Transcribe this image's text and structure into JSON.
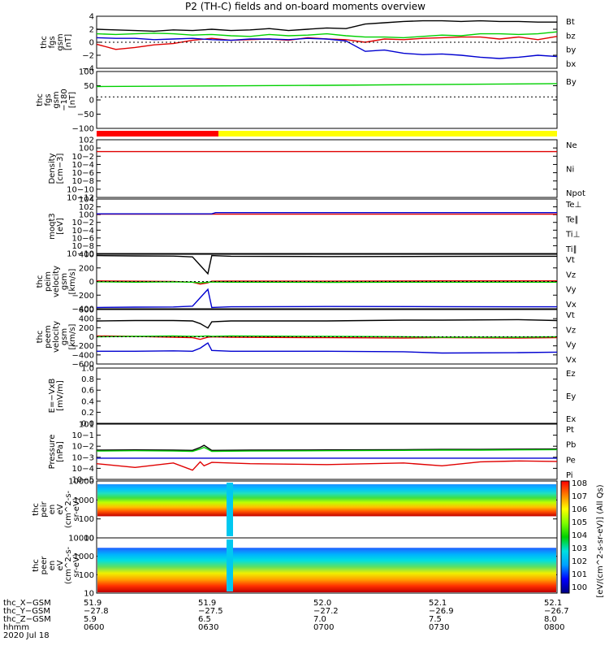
{
  "title": "P2 (TH-C) fields and on-board moments overview",
  "colors": {
    "black": "#000000",
    "red": "#e00000",
    "green": "#00d000",
    "blue": "#0000d0"
  },
  "chart_data": [
    {
      "type": "line",
      "ylabel": [
        "thc",
        "fgs",
        "gsm",
        "[nT]"
      ],
      "ylim": [
        -4,
        4
      ],
      "yticks": [
        "4",
        "2",
        "0",
        "−2",
        "−4"
      ],
      "x": [
        0,
        5,
        10,
        15,
        20,
        25,
        30,
        35,
        40,
        45,
        50,
        55,
        60,
        65,
        70,
        75,
        80,
        85,
        90,
        95,
        100,
        105,
        110,
        115,
        120
      ],
      "series": [
        {
          "name": "Bt",
          "color": "black",
          "values": [
            2.0,
            1.9,
            1.8,
            1.7,
            1.9,
            1.8,
            2.0,
            1.8,
            1.9,
            2.1,
            1.8,
            2.0,
            2.2,
            2.1,
            2.8,
            3.0,
            3.2,
            3.3,
            3.3,
            3.2,
            3.3,
            3.2,
            3.2,
            3.1,
            3.1
          ]
        },
        {
          "name": "bz",
          "color": "red",
          "values": [
            -0.3,
            -1.1,
            -0.8,
            -0.4,
            -0.2,
            0.3,
            0.6,
            0.3,
            0.4,
            0.5,
            0.3,
            0.7,
            0.5,
            0.4,
            0.0,
            0.5,
            0.4,
            0.6,
            0.7,
            0.8,
            0.8,
            0.5,
            0.8,
            0.4,
            0.9
          ]
        },
        {
          "name": "by",
          "color": "green",
          "values": [
            1.3,
            1.2,
            1.3,
            1.4,
            1.3,
            1.1,
            1.2,
            1.0,
            0.9,
            1.2,
            1.0,
            1.1,
            1.3,
            1.0,
            0.8,
            0.8,
            0.7,
            0.9,
            1.1,
            1.0,
            1.3,
            1.3,
            1.2,
            1.3,
            1.6
          ]
        },
        {
          "name": "bx",
          "color": "blue",
          "values": [
            0.7,
            0.6,
            0.6,
            0.4,
            0.5,
            0.6,
            0.4,
            0.3,
            0.5,
            0.5,
            0.4,
            0.6,
            0.5,
            0.2,
            -1.4,
            -1.2,
            -1.7,
            -1.9,
            -1.8,
            -2.0,
            -2.3,
            -2.5,
            -2.3,
            -2.0,
            -2.2
          ]
        }
      ]
    },
    {
      "type": "line",
      "ylabel": [
        "thc",
        "fgs",
        "gsm",
        "−180",
        "[nT]"
      ],
      "ylim": [
        -130,
        105
      ],
      "yticks": [
        "100",
        "50",
        "0",
        "−50",
        "−100"
      ],
      "x": [
        0,
        60,
        120
      ],
      "series": [
        {
          "name": "By",
          "color": "green",
          "values": [
            43,
            48,
            55
          ]
        }
      ]
    },
    {
      "type": "line",
      "ylabel": [
        "Density",
        "[cm−3]"
      ],
      "log": true,
      "ylim": [
        -13,
        3
      ],
      "yticks": [
        "10^2",
        "10^0",
        "10^−2",
        "10^−4",
        "10^−6",
        "10^−8",
        "10^−10",
        "10^−12"
      ],
      "x": [
        0,
        120
      ],
      "series": [
        {
          "name": "Ne",
          "color": "red",
          "values": [
            0.5,
            0.5
          ]
        },
        {
          "name": "Ni",
          "color": "black",
          "values": [
            null,
            null
          ]
        },
        {
          "name": "Npot",
          "color": "blue",
          "values": [
            null,
            null
          ]
        }
      ]
    },
    {
      "type": "line",
      "ylabel": [
        "moqt3",
        "[eV]"
      ],
      "log": true,
      "ylim": [
        -13,
        5
      ],
      "yticks": [
        "10^4",
        "10^2",
        "10^0",
        "10^−2",
        "10^−4",
        "10^−6",
        "10^−8",
        "10^−10"
      ],
      "x": [
        0,
        30,
        31,
        120
      ],
      "series": [
        {
          "name": "Te⊥",
          "color": "red",
          "values": [
            1.0,
            1.0,
            1.0,
            1.0
          ]
        },
        {
          "name": "Te∥",
          "color": "black",
          "values": [
            null,
            null,
            null,
            null
          ]
        },
        {
          "name": "Ti⊥",
          "color": "blue",
          "values": [
            1.3,
            1.3,
            3.3,
            3.3
          ]
        },
        {
          "name": "Ti∥",
          "color": "green",
          "values": [
            null,
            null,
            null,
            null
          ]
        }
      ]
    },
    {
      "type": "line",
      "ylabel": [
        "thc",
        "peim",
        "velocity",
        "gsm",
        "[km/s]"
      ],
      "ylim": [
        -420,
        420
      ],
      "yticks": [
        "400",
        "200",
        "0",
        "−200",
        "−400"
      ],
      "x": [
        0,
        10,
        20,
        25,
        27,
        29,
        30,
        35,
        60,
        90,
        120
      ],
      "series": [
        {
          "name": "Vt",
          "color": "black",
          "values": [
            400,
            395,
            392,
            380,
            250,
            120,
            400,
            390,
            385,
            388,
            390
          ]
        },
        {
          "name": "Vz",
          "color": "red",
          "values": [
            10,
            5,
            0,
            -10,
            -40,
            -20,
            5,
            8,
            5,
            10,
            10
          ]
        },
        {
          "name": "Vy",
          "color": "green",
          "values": [
            -5,
            -10,
            -5,
            -10,
            -20,
            -10,
            -8,
            -10,
            -12,
            -10,
            -10
          ]
        },
        {
          "name": "Vx",
          "color": "blue",
          "values": [
            -400,
            -395,
            -392,
            -380,
            -250,
            -120,
            -400,
            -390,
            -385,
            -388,
            -390
          ]
        }
      ]
    },
    {
      "type": "line",
      "ylabel": [
        "thc",
        "peem",
        "velocity",
        "gsm",
        "[km/s]"
      ],
      "ylim": [
        -620,
        620
      ],
      "yticks": [
        "600",
        "400",
        "200",
        "0",
        "−200",
        "−400",
        "−600"
      ],
      "x": [
        0,
        10,
        20,
        25,
        27,
        29,
        30,
        35,
        60,
        80,
        90,
        110,
        120
      ],
      "series": [
        {
          "name": "Vt",
          "color": "black",
          "values": [
            360,
            370,
            370,
            360,
            300,
            200,
            340,
            360,
            360,
            380,
            380,
            390,
            370
          ]
        },
        {
          "name": "Vz",
          "color": "red",
          "values": [
            20,
            10,
            -10,
            -20,
            -60,
            -10,
            0,
            -10,
            -20,
            -30,
            -20,
            -30,
            -20
          ]
        },
        {
          "name": "Vy",
          "color": "green",
          "values": [
            0,
            10,
            20,
            10,
            10,
            20,
            10,
            20,
            10,
            0,
            -10,
            -10,
            0
          ]
        },
        {
          "name": "Vx",
          "color": "blue",
          "values": [
            -330,
            -330,
            -320,
            -330,
            -260,
            -140,
            -310,
            -330,
            -330,
            -340,
            -370,
            -360,
            -350
          ]
        }
      ]
    },
    {
      "type": "line",
      "ylabel": [
        "E=−VxB",
        "[mV/m]"
      ],
      "ylim": [
        0,
        1
      ],
      "yticks": [
        "1.0",
        "0.8",
        "0.6",
        "0.4",
        "0.2",
        "0.0"
      ],
      "x": [
        0,
        120
      ],
      "series": [
        {
          "name": "Ez",
          "color": "red",
          "values": [
            null,
            null
          ]
        },
        {
          "name": "Ey",
          "color": "green",
          "values": [
            null,
            null
          ]
        },
        {
          "name": "Ex",
          "color": "blue",
          "values": [
            null,
            null
          ]
        }
      ]
    },
    {
      "type": "line",
      "ylabel": [
        "Pressure",
        "[nPa]"
      ],
      "log": true,
      "ylim": [
        -5,
        1
      ],
      "yticks": [
        "10^1",
        "10^−1",
        "10^−2",
        "10^−3",
        "10^−4",
        "10^−5"
      ],
      "x": [
        0,
        10,
        20,
        25,
        27,
        28,
        30,
        40,
        60,
        80,
        90,
        100,
        110,
        120
      ],
      "series": [
        {
          "name": "Pt",
          "color": "black",
          "values": [
            0.015,
            0.016,
            0.015,
            0.014,
            0.03,
            0.05,
            0.014,
            0.015,
            0.016,
            0.017,
            0.018,
            0.018,
            0.019,
            0.02
          ]
        },
        {
          "name": "Pb",
          "color": "red",
          "values": [
            0.0005,
            0.0002,
            0.0006,
            0.0001,
            0.0008,
            0.0003,
            0.0007,
            0.0005,
            0.0004,
            0.0006,
            0.0003,
            0.0008,
            0.001,
            0.0009
          ]
        },
        {
          "name": "Pe",
          "color": "green",
          "values": [
            0.012,
            0.013,
            0.012,
            0.011,
            0.02,
            0.03,
            0.011,
            0.012,
            0.013,
            0.014,
            0.015,
            0.015,
            0.016,
            0.017
          ]
        },
        {
          "name": "Pi",
          "color": "blue",
          "values": [
            0.002,
            0.002,
            0.002,
            0.002,
            0.002,
            0.002,
            0.002,
            0.002,
            0.002,
            0.002,
            0.002,
            0.002,
            0.002,
            0.002
          ]
        }
      ]
    },
    {
      "type": "heatmap",
      "ylabel": [
        "thc",
        "peir",
        "en",
        "eV",
        "(cm^2-s-",
        "sr-eV)"
      ],
      "yticks": [
        "10000",
        "1000",
        "100",
        "10"
      ]
    },
    {
      "type": "heatmap",
      "ylabel": [
        "thc",
        "peer",
        "en",
        "eV",
        "(cm^2-s-",
        "sr-eV)"
      ],
      "yticks": [
        "10000",
        "1000",
        "100",
        "10"
      ]
    }
  ],
  "colorbar": {
    "label": "[eV/(cm^2-s-sr-eV)] (All Qs)",
    "ticks": [
      "10^8",
      "10^7",
      "10^6",
      "10^5",
      "10^4",
      "10^3",
      "10^2",
      "10^1",
      "10^0"
    ],
    "ticks2": [
      "10^8",
      "10^7",
      "10^6",
      "10^5",
      "10^4",
      "10^3",
      "10^2",
      "10^1",
      "10^0"
    ]
  },
  "x_axis": {
    "rows": [
      {
        "label": "thc_X−GSM",
        "values": [
          "51.9",
          "51.9",
          "52.0",
          "52.1",
          "52.1"
        ]
      },
      {
        "label": "thc_Y−GSM",
        "values": [
          "−27.8",
          "−27.5",
          "−27.2",
          "−26.9",
          "−26.7"
        ]
      },
      {
        "label": "thc_Z−GSM",
        "values": [
          "5.9",
          "6.5",
          "7.0",
          "7.5",
          "8.0"
        ]
      },
      {
        "label": "hhmm",
        "values": [
          "0600",
          "0630",
          "0700",
          "0730",
          "0800"
        ]
      }
    ],
    "date": "2020 Jul 18"
  }
}
